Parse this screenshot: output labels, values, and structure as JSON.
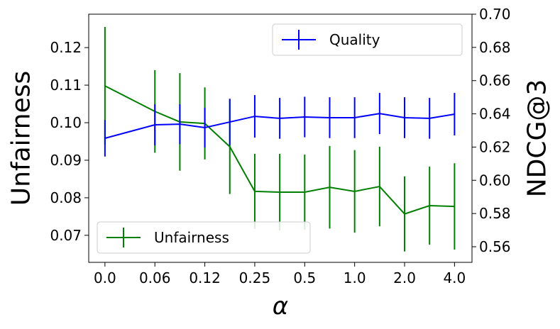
{
  "chart_data": {
    "type": "line",
    "xlabel": "α",
    "ylabel": "Unfairness",
    "y2label": "NDCG@3",
    "x": [
      0,
      2,
      3,
      4,
      5,
      6,
      7,
      8,
      9,
      10,
      11,
      12,
      13,
      14
    ],
    "xlim": [
      -0.65,
      14.7
    ],
    "xticks": [
      {
        "value": 0,
        "label": "0.0"
      },
      {
        "value": 2,
        "label": "0.06"
      },
      {
        "value": 4,
        "label": "0.12"
      },
      {
        "value": 6,
        "label": "0.25"
      },
      {
        "value": 8,
        "label": "0.5"
      },
      {
        "value": 10,
        "label": "1.0"
      },
      {
        "value": 12,
        "label": "2.0"
      },
      {
        "value": 14,
        "label": "4.0"
      }
    ],
    "ylim": [
      0.0628,
      0.1289
    ],
    "yticks": [
      0.07,
      0.08,
      0.09,
      {
        "value": 0.1,
        "label": "0.10"
      },
      0.11,
      0.12
    ],
    "y2lim": [
      0.5506,
      0.7
    ],
    "y2ticks": [
      0.56,
      0.58,
      {
        "value": 0.6,
        "label": "0.60"
      },
      0.62,
      0.64,
      0.66,
      0.68,
      {
        "value": 0.7,
        "label": "0.70"
      }
    ],
    "series": [
      {
        "name": "Unfairness",
        "color": "#008000",
        "axis": "y",
        "legend": "lower left",
        "values": [
          0.1098,
          0.103,
          0.1002,
          0.0998,
          0.0936,
          0.0817,
          0.0815,
          0.0815,
          0.0828,
          0.0817,
          0.083,
          0.0757,
          0.0779,
          0.0777
        ],
        "errors": [
          0.0157,
          0.011,
          0.013,
          0.0096,
          0.0126,
          0.01,
          0.0102,
          0.01,
          0.011,
          0.011,
          0.0106,
          0.01,
          0.0104,
          0.0115
        ]
      },
      {
        "name": "Quality",
        "color": "#0000ff",
        "axis": "y2",
        "legend": "upper right",
        "values": [
          0.6253,
          0.6334,
          0.6338,
          0.6317,
          0.6351,
          0.6385,
          0.6373,
          0.6381,
          0.6377,
          0.6377,
          0.6402,
          0.6377,
          0.6373,
          0.6398
        ],
        "errors": [
          0.011,
          0.0124,
          0.012,
          0.012,
          0.014,
          0.0128,
          0.0123,
          0.0122,
          0.0123,
          0.0123,
          0.0124,
          0.0123,
          0.0123,
          0.0128
        ]
      }
    ]
  }
}
